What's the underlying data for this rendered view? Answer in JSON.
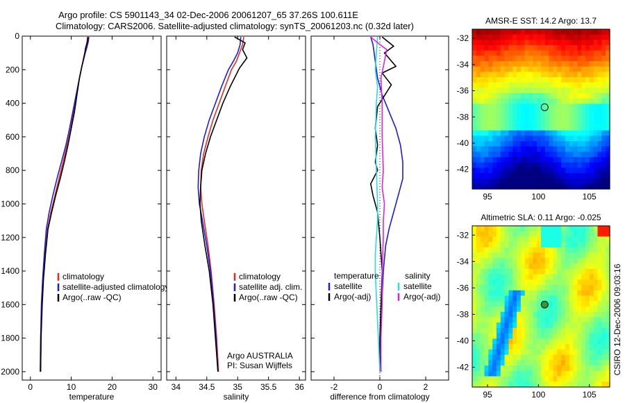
{
  "header": {
    "line1": "Argo profile: CS 5901143_34 02-Dec-2006 20061207_65 37.26S 100.611E",
    "line2": "Climatology: CARS2006. Satellite-adjusted climatology: synTS_20061203.nc (0.32d later)"
  },
  "colors": {
    "climatology": "#e8281e",
    "satellite": "#1a1ae0",
    "argo": "#000000",
    "sat_diff": "#22e0e0",
    "argo_diff": "#e022e0"
  },
  "chart_data": [
    {
      "type": "line",
      "id": "temperature",
      "xlabel": "temperature",
      "xlim": [
        -2,
        32
      ],
      "ylim": [
        0,
        2050
      ],
      "y_reversed": true,
      "xticks": [
        0,
        10,
        20,
        30
      ],
      "yticks": [
        0,
        200,
        400,
        600,
        800,
        1000,
        1200,
        1400,
        1600,
        1800,
        2000
      ],
      "series": [
        {
          "name": "climatology",
          "color": "#e8281e",
          "x": [
            14.0,
            13.9,
            13.6,
            13.1,
            12.6,
            12.0,
            11.3,
            10.6,
            9.9,
            9.0,
            8.0,
            7.0,
            6.0,
            5.0,
            4.2,
            3.6,
            3.1,
            2.8,
            2.6,
            2.5
          ],
          "y": [
            5,
            30,
            70,
            120,
            180,
            250,
            350,
            450,
            550,
            650,
            750,
            850,
            950,
            1050,
            1150,
            1300,
            1450,
            1600,
            1800,
            2000
          ]
        },
        {
          "name": "satellite-adjusted climatology",
          "color": "#1a1ae0",
          "x": [
            14.3,
            14.2,
            13.8,
            13.2,
            12.6,
            12.0,
            11.2,
            10.4,
            9.6,
            8.7,
            7.6,
            6.5,
            5.5,
            4.6,
            3.9,
            3.4,
            3.0,
            2.7,
            2.5,
            2.4
          ],
          "y": [
            5,
            30,
            70,
            120,
            180,
            250,
            350,
            450,
            550,
            650,
            750,
            850,
            950,
            1050,
            1150,
            1300,
            1450,
            1600,
            1800,
            2000
          ]
        },
        {
          "name": "Argo(..raw -QC)",
          "color": "#000000",
          "x": [
            14.1,
            14.0,
            13.5,
            13.2,
            12.6,
            12.0,
            11.4,
            10.8,
            10.0,
            9.2,
            8.3,
            7.3,
            6.2,
            5.2,
            4.3,
            3.7,
            3.2,
            2.9,
            2.6,
            2.5
          ],
          "y": [
            5,
            30,
            70,
            120,
            180,
            250,
            350,
            450,
            550,
            650,
            750,
            850,
            950,
            1050,
            1150,
            1300,
            1450,
            1600,
            1800,
            2000
          ]
        }
      ],
      "legend": [
        "climatology",
        "satellite-adjusted climatology",
        "Argo(..raw -QC)"
      ]
    },
    {
      "type": "line",
      "id": "salinity",
      "xlabel": "salinity",
      "xlim": [
        33.85,
        36.1
      ],
      "ylim": [
        0,
        2050
      ],
      "y_reversed": true,
      "xticks": [
        34,
        34.5,
        35,
        35.5,
        36
      ],
      "series": [
        {
          "name": "climatology",
          "color": "#e8281e",
          "x": [
            35.1,
            35.08,
            35.03,
            34.98,
            34.9,
            34.8,
            34.7,
            34.6,
            34.52,
            34.45,
            34.41,
            34.4,
            34.42,
            34.46,
            34.52,
            34.57,
            34.62,
            34.66,
            34.69
          ],
          "y": [
            5,
            50,
            100,
            150,
            200,
            300,
            400,
            500,
            600,
            700,
            800,
            900,
            1000,
            1100,
            1250,
            1400,
            1600,
            1800,
            2000
          ]
        },
        {
          "name": "satellite adj. clim.",
          "color": "#1a1ae0",
          "x": [
            35.05,
            35.04,
            35.0,
            34.93,
            34.85,
            34.74,
            34.64,
            34.54,
            34.46,
            34.4,
            34.37,
            34.36,
            34.38,
            34.43,
            34.5,
            34.56,
            34.61,
            34.65,
            34.68
          ],
          "y": [
            5,
            50,
            100,
            150,
            200,
            300,
            400,
            500,
            600,
            700,
            800,
            900,
            1000,
            1100,
            1250,
            1400,
            1600,
            1800,
            2000
          ]
        },
        {
          "name": "Argo(..raw -QC)",
          "color": "#000000",
          "x": [
            34.95,
            35.12,
            35.08,
            35.15,
            35.03,
            34.88,
            34.76,
            34.66,
            34.56,
            34.48,
            34.42,
            34.4,
            34.39,
            34.41,
            34.47,
            34.54,
            34.6,
            34.64,
            34.68
          ],
          "y": [
            5,
            40,
            80,
            130,
            190,
            300,
            400,
            500,
            600,
            700,
            800,
            900,
            1000,
            1100,
            1250,
            1400,
            1600,
            1800,
            2000
          ]
        }
      ],
      "legend": [
        "climatology",
        "satellite adj. clim.",
        "Argo(..raw -QC)"
      ],
      "annotation": [
        "Argo AUSTRALIA",
        "PI: Susan Wijffels"
      ]
    },
    {
      "type": "line",
      "id": "difference",
      "xlabel": "difference from climatology",
      "xlim": [
        -3,
        3
      ],
      "ylim": [
        0,
        2050
      ],
      "y_reversed": true,
      "xticks": [
        -2,
        0,
        2
      ],
      "series": [
        {
          "name": "temperature satellite",
          "color": "#1a1ae0",
          "x": [
            -0.4,
            -0.3,
            -0.2,
            -0.1,
            0.1,
            0.4,
            0.7,
            0.9,
            1.0,
            1.0,
            0.9,
            0.8,
            0.6,
            0.4,
            0.25,
            0.15,
            0.1,
            0.05,
            0.0,
            0.0
          ],
          "y": [
            5,
            50,
            150,
            250,
            350,
            450,
            550,
            650,
            750,
            850,
            900,
            950,
            1050,
            1150,
            1250,
            1400,
            1550,
            1700,
            1850,
            2000
          ]
        },
        {
          "name": "temperature Argo(-adj)",
          "color": "#000000",
          "x": [
            0.1,
            0.6,
            0.2,
            0.7,
            0.1,
            0.5,
            -0.1,
            -0.2,
            -0.1,
            -0.2,
            -0.1,
            -0.4,
            -0.3,
            -0.1,
            0.0,
            0.1,
            0.05,
            0.0,
            0.0,
            0.05
          ],
          "y": [
            5,
            60,
            100,
            180,
            220,
            290,
            420,
            550,
            650,
            750,
            800,
            880,
            950,
            1050,
            1200,
            1400,
            1600,
            1800,
            1900,
            2000
          ]
        },
        {
          "name": "salinity satellite",
          "color": "#22e0e0",
          "x": [
            -0.1,
            -0.15,
            -0.2,
            -0.1,
            -0.15,
            -0.2,
            -0.15,
            -0.1,
            -0.1,
            -0.15,
            -0.2,
            -0.2,
            -0.15,
            -0.1,
            -0.05,
            0.0
          ],
          "y": [
            5,
            100,
            200,
            300,
            400,
            600,
            800,
            1000,
            1100,
            1200,
            1300,
            1400,
            1550,
            1700,
            1850,
            2000
          ]
        },
        {
          "name": "salinity Argo(-adj)",
          "color": "#e022e0",
          "x": [
            -0.4,
            0.0,
            0.3,
            0.2,
            0.05,
            0.1,
            0.1,
            0.15,
            0.1,
            0.2,
            0.15,
            0.15,
            0.1,
            0.1,
            0.05,
            0.05
          ],
          "y": [
            5,
            50,
            80,
            150,
            250,
            400,
            600,
            800,
            900,
            1000,
            1100,
            1200,
            1400,
            1600,
            1800,
            2000
          ]
        }
      ],
      "legend_headers": [
        "temperature",
        "salinity"
      ],
      "legend_left": [
        "satellite",
        "Argo(-adj)"
      ],
      "legend_right": [
        "satellite",
        "Argo(-adj)"
      ]
    },
    {
      "type": "heatmap",
      "id": "sst_map",
      "title": "AMSR-E SST: 14.2 Argo: 13.7",
      "xlim": [
        93.5,
        107
      ],
      "ylim": [
        -43.5,
        -31.3
      ],
      "xticks": [
        95,
        100,
        105
      ],
      "yticks": [
        -32,
        -34,
        -36,
        -38,
        -40,
        -42
      ],
      "marker": {
        "lon": 100.611,
        "lat": -37.26
      }
    },
    {
      "type": "heatmap",
      "id": "sla_map",
      "title": "Altimetric SLA: 0.11 Argo: -0.025",
      "xlim": [
        93.5,
        107
      ],
      "ylim": [
        -43.5,
        -31.3
      ],
      "xticks": [
        95,
        100,
        105
      ],
      "yticks": [
        -32,
        -34,
        -36,
        -38,
        -40,
        -42
      ],
      "marker": {
        "lon": 100.611,
        "lat": -37.26
      }
    }
  ],
  "footer": {
    "credit": "CSIRO 12-Dec-2006 09:03:16"
  }
}
